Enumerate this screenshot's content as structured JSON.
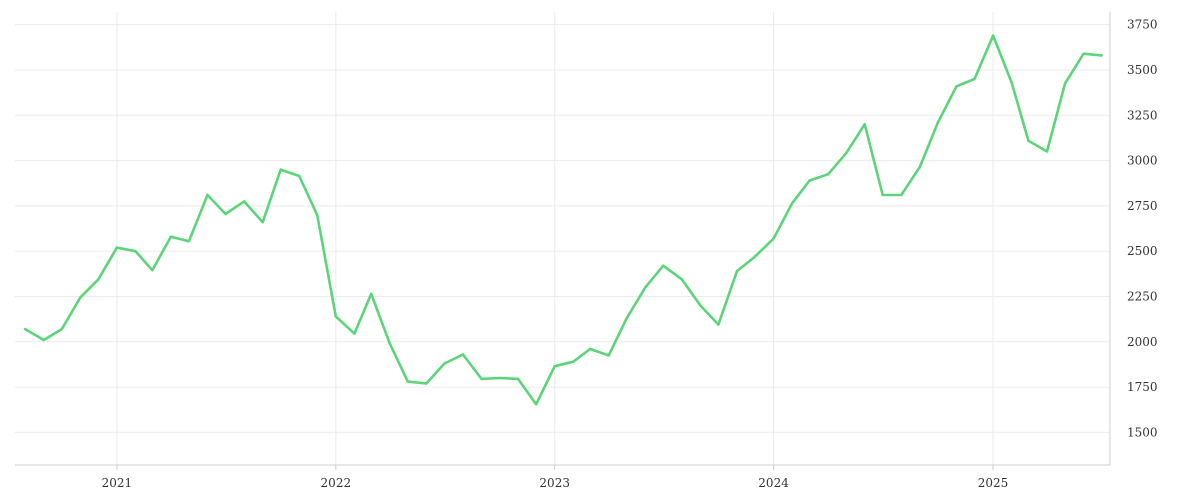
{
  "chart_data": {
    "type": "line",
    "title": "",
    "xlabel": "",
    "ylabel": "",
    "grid": true,
    "ylim": [
      1320,
      3820
    ],
    "y_ticks": [
      1500,
      1750,
      2000,
      2250,
      2500,
      2750,
      3000,
      3250,
      3500,
      3750
    ],
    "x_ticks": [
      {
        "label": "2021",
        "x": "2021-01-01"
      },
      {
        "label": "2022",
        "x": "2022-01-01"
      },
      {
        "label": "2023",
        "x": "2023-01-01"
      },
      {
        "label": "2024",
        "x": "2024-01-01"
      },
      {
        "label": "2025",
        "x": "2025-01-01"
      }
    ],
    "xlim": [
      "2020-07-15",
      "2025-07-15"
    ],
    "series": [
      {
        "color": "#5cd47a",
        "x": [
          "2020-08-01",
          "2020-09-01",
          "2020-10-01",
          "2020-11-01",
          "2020-12-01",
          "2021-01-01",
          "2021-02-01",
          "2021-03-01",
          "2021-04-01",
          "2021-05-01",
          "2021-06-01",
          "2021-07-01",
          "2021-08-01",
          "2021-09-01",
          "2021-10-01",
          "2021-11-01",
          "2021-12-01",
          "2022-01-01",
          "2022-02-01",
          "2022-03-01",
          "2022-04-01",
          "2022-05-01",
          "2022-06-01",
          "2022-07-01",
          "2022-08-01",
          "2022-09-01",
          "2022-10-01",
          "2022-11-01",
          "2022-12-01",
          "2023-01-01",
          "2023-02-01",
          "2023-03-01",
          "2023-04-01",
          "2023-05-01",
          "2023-06-01",
          "2023-07-01",
          "2023-08-01",
          "2023-09-01",
          "2023-10-01",
          "2023-11-01",
          "2023-12-01",
          "2024-01-01",
          "2024-02-01",
          "2024-03-01",
          "2024-04-01",
          "2024-05-01",
          "2024-06-01",
          "2024-07-01",
          "2024-08-01",
          "2024-09-01",
          "2024-10-01",
          "2024-11-01",
          "2024-12-01",
          "2025-01-01",
          "2025-02-01",
          "2025-03-01",
          "2025-04-01",
          "2025-05-01",
          "2025-06-01",
          "2025-07-01"
        ],
        "values": [
          2070,
          2010,
          2070,
          2245,
          2345,
          2520,
          2500,
          2395,
          2580,
          2555,
          2810,
          2705,
          2775,
          2660,
          2950,
          2915,
          2700,
          2140,
          2045,
          2265,
          1990,
          1780,
          1770,
          1880,
          1930,
          1795,
          1800,
          1795,
          1655,
          1865,
          1890,
          1960,
          1925,
          2130,
          2300,
          2420,
          2345,
          2200,
          2095,
          2390,
          2470,
          2570,
          2765,
          2890,
          2925,
          3040,
          3200,
          2810,
          2810,
          2965,
          3210,
          3410,
          3450,
          3690,
          3430,
          3110,
          3050,
          3425,
          3590,
          3580
        ]
      }
    ]
  }
}
